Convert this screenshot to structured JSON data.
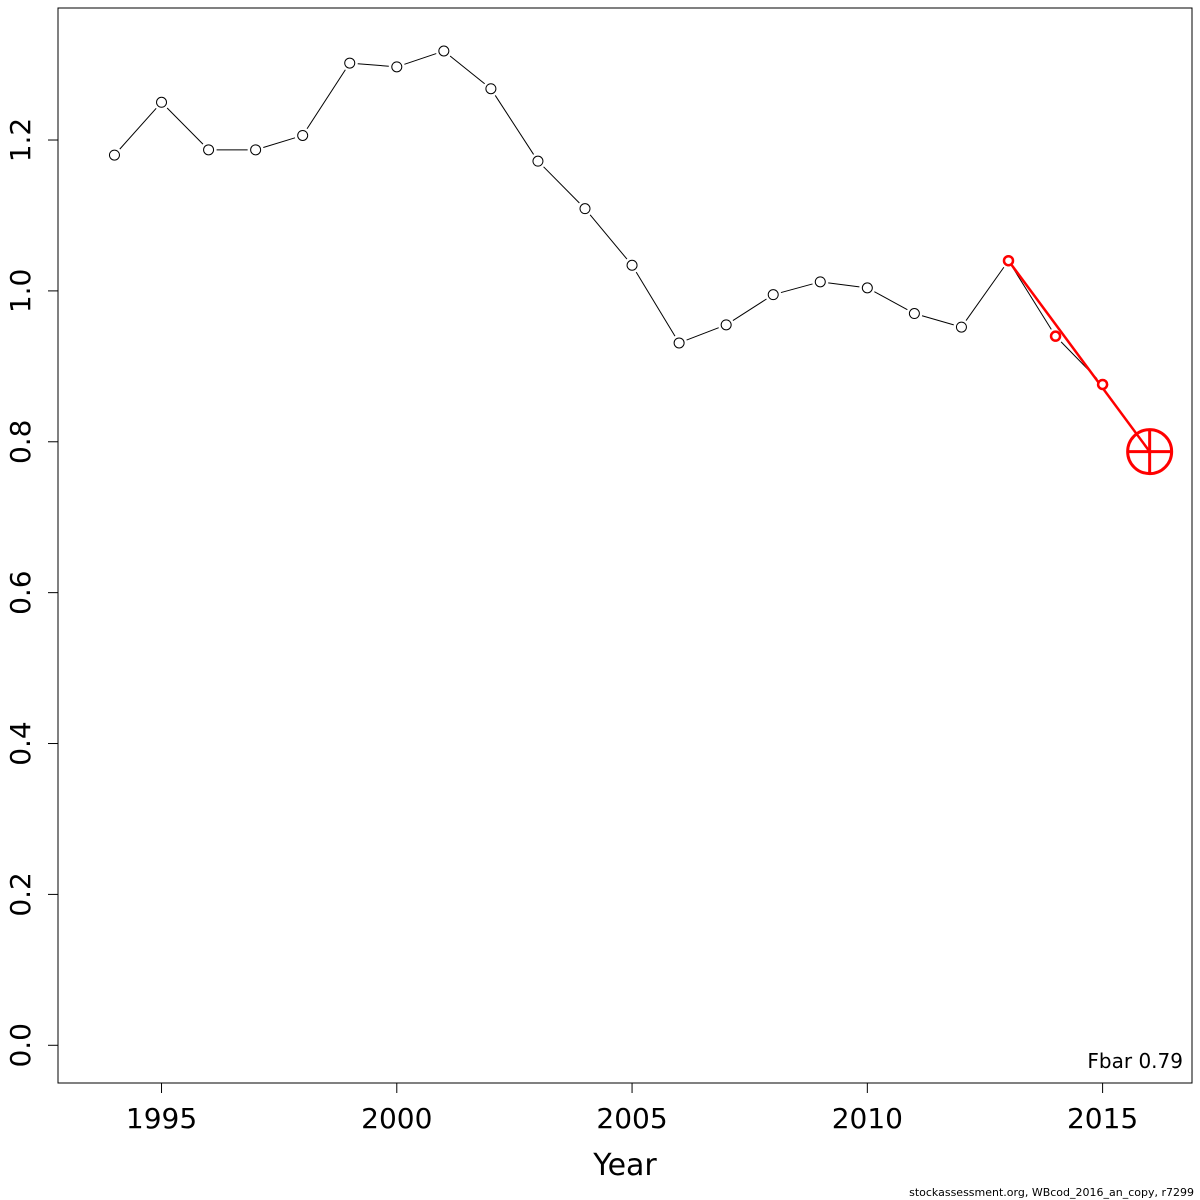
{
  "chart_data": {
    "type": "line",
    "xlabel": "Year",
    "ylabel": "",
    "xlim": [
      1992.8,
      2016.9
    ],
    "ylim": [
      -0.05,
      1.375
    ],
    "x_ticks": [
      1995,
      2000,
      2005,
      2010,
      2015
    ],
    "y_ticks": [
      0.0,
      0.2,
      0.4,
      0.6,
      0.8,
      1.0,
      1.2
    ],
    "x_tick_labels": [
      "1995",
      "2000",
      "2005",
      "2010",
      "2015"
    ],
    "y_tick_labels": [
      "0.0",
      "0.2",
      "0.4",
      "0.6",
      "0.8",
      "1.0",
      "1.2"
    ],
    "grid": false,
    "series": [
      {
        "color": "#000000",
        "marker": "open-circle",
        "x": [
          1994,
          1995,
          1996,
          1997,
          1998,
          1999,
          2000,
          2001,
          2002,
          2003,
          2004,
          2005,
          2006,
          2007,
          2008,
          2009,
          2010,
          2011,
          2012,
          2013,
          2014,
          2015
        ],
        "y": [
          1.18,
          1.25,
          1.187,
          1.187,
          1.206,
          1.302,
          1.297,
          1.318,
          1.268,
          1.172,
          1.109,
          1.034,
          0.931,
          0.955,
          0.995,
          1.012,
          1.004,
          0.97,
          0.952,
          1.04,
          0.94,
          0.876
        ]
      },
      {
        "color": "#ff0000",
        "marker": "open-circle",
        "x": [
          2013,
          2014,
          2015
        ],
        "y": [
          1.04,
          0.94,
          0.876
        ]
      }
    ],
    "projection": {
      "color": "#ff0000",
      "from": {
        "x": 2013,
        "y": 1.04
      },
      "to": {
        "x": 2016,
        "y": 0.787
      }
    },
    "annotation": "Fbar 0.79"
  },
  "footer": "stockassessment.org, WBcod_2016_an_copy, r7299"
}
